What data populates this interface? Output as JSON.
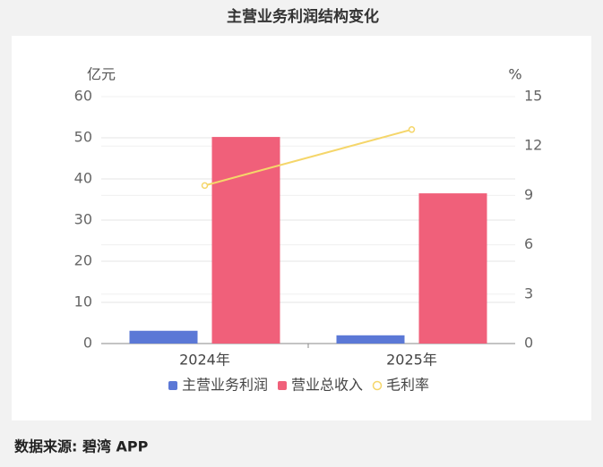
{
  "chart_data": {
    "type": "bar_line",
    "title": "主营业务利润结构变化",
    "source": "数据来源: 碧湾 APP",
    "y_unit": "亿元",
    "y2_unit": "%",
    "categories": [
      "2024年",
      "2025年"
    ],
    "series": [
      {
        "name": "主营业务利润",
        "type": "bar",
        "color": "#5b78d6",
        "values": [
          3.1,
          2.0
        ]
      },
      {
        "name": "营业总收入",
        "type": "bar",
        "color": "#f0607a",
        "values": [
          50.2,
          36.5
        ]
      },
      {
        "name": "毛利率",
        "type": "line",
        "axis": "y2",
        "color": "#f5d66a",
        "values": [
          9.6,
          13.0
        ]
      }
    ],
    "ylim": [
      0,
      60
    ],
    "yticks": [
      0,
      10,
      20,
      30,
      40,
      50,
      60
    ],
    "y2lim": [
      0,
      15
    ],
    "y2ticks": [
      0,
      3,
      6,
      9,
      12,
      15
    ],
    "grid": true
  }
}
